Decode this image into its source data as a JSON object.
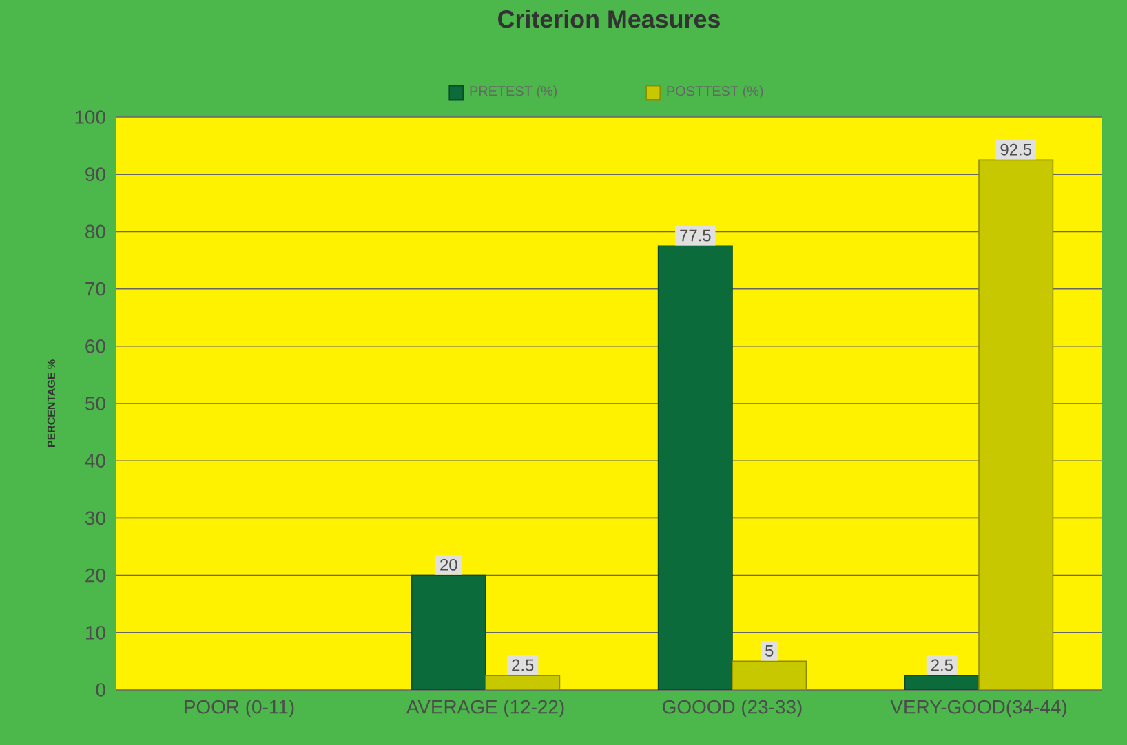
{
  "chart_data": {
    "type": "bar",
    "title": "Criterion Measures",
    "ylabel": "PERCENTAGE %",
    "categories": [
      "POOR (0-11)",
      "AVERAGE (12-22)",
      "GOOOD (23-33)",
      "VERY-GOOD(34-44)"
    ],
    "series": [
      {
        "name": "PRETEST  (%)",
        "color": "#0b6b3a",
        "values": [
          null,
          20,
          77.5,
          2.5
        ]
      },
      {
        "name": "POSTTEST (%)",
        "color": "#c8c800",
        "values": [
          null,
          2.5,
          5,
          92.5
        ]
      }
    ],
    "ylim": [
      0,
      100
    ],
    "yticks": [
      0,
      10,
      20,
      30,
      40,
      50,
      60,
      70,
      80,
      90,
      100
    ],
    "grid": "y",
    "legend": "top",
    "data_labels": true
  }
}
